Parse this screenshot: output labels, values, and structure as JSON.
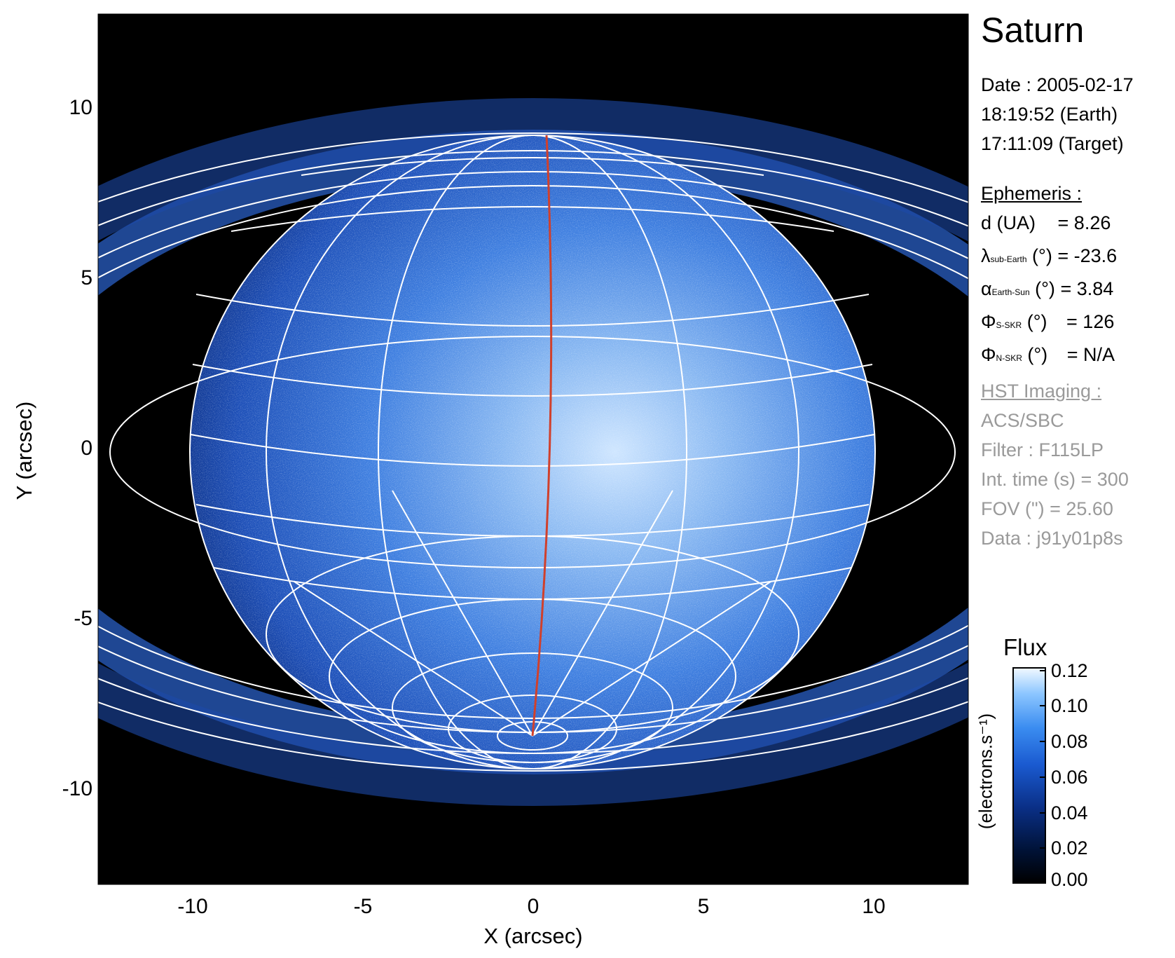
{
  "figure": {
    "title": "Saturn",
    "date_lines": [
      "Date : 2005-02-17",
      "18:19:52 (Earth)",
      "17:11:09 (Target)"
    ],
    "ephemeris": {
      "heading": "Ephemeris :",
      "rows": [
        {
          "sym": "d (UA)",
          "sub": "",
          "unit": "",
          "eq": "= 8.26"
        },
        {
          "sym": "λ",
          "sub": "sub-Earth",
          "unit": " (°)",
          "eq": "= -23.6"
        },
        {
          "sym": "α",
          "sub": "Earth-Sun",
          "unit": " (°)",
          "eq": "= 3.84"
        },
        {
          "sym": "Φ",
          "sub": "S-SKR",
          "unit": " (°)",
          "eq": "= 126"
        },
        {
          "sym": "Φ",
          "sub": "N-SKR",
          "unit": " (°)",
          "eq": "= N/A"
        }
      ]
    },
    "imaging": {
      "heading": "HST Imaging :",
      "lines": [
        "ACS/SBC",
        "Filter : F115LP",
        "Int. time (s) = 300",
        "FOV (\") = 25.60",
        "Data : j91y01p8s"
      ]
    },
    "xlabel": "X (arcsec)",
    "ylabel": "Y (arcsec)",
    "x_ticks": [
      "-10",
      "-5",
      "0",
      "5",
      "10"
    ],
    "y_ticks": [
      "10",
      "5",
      "0",
      "-5",
      "-10"
    ],
    "colorbar": {
      "title": "Flux",
      "label": "(electrons.s⁻¹)",
      "ticks": [
        "0.12",
        "0.10",
        "0.08",
        "0.06",
        "0.04",
        "0.02",
        "0.00"
      ],
      "colors": [
        "#000000",
        "#00103a",
        "#0a2f86",
        "#1a5ad0",
        "#3a8cf0",
        "#8cc6ff",
        "#eaf6ff"
      ]
    },
    "colors": {
      "background": "#000000",
      "disk": "#2f6fd8",
      "grid": "#ffffff",
      "meridian": "#c0392b"
    }
  }
}
